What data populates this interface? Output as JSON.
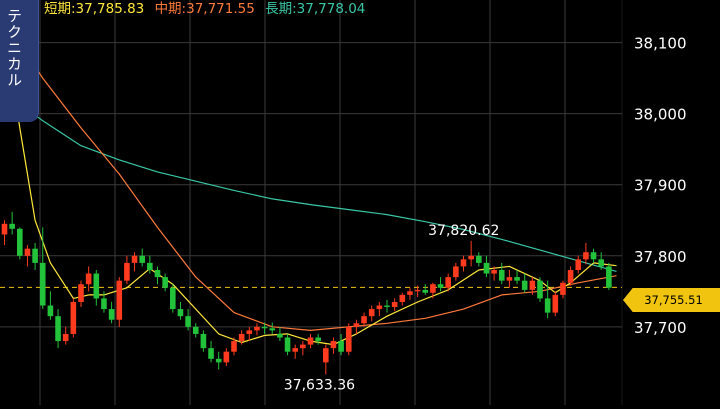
{
  "header": {
    "ma_short_label": "短期:37,785.83",
    "ma_mid_label": "中期:37,771.55",
    "ma_long_label": "長期:37,778.04"
  },
  "tab": {
    "label": "テクニカル"
  },
  "price_tag": {
    "value": "37,755.51"
  },
  "colors": {
    "up": "#ff3b1f",
    "down": "#22c33b",
    "ma_short": "#ffe93b",
    "ma_mid": "#ff7a3b",
    "ma_long": "#39c7a6",
    "current_line": "#f1c40f",
    "grid": "#3a3a3a"
  },
  "chart_data": {
    "type": "candlestick",
    "ylim": [
      37590,
      38160
    ],
    "yticks": [
      37700,
      37800,
      37900,
      38000,
      38100
    ],
    "ytick_labels": [
      "37,700",
      "37,800",
      "37,900",
      "38,000",
      "38,100"
    ],
    "current_price": 37755.51,
    "annotations": [
      {
        "text": "37,820.62",
        "index": 61
      },
      {
        "text": "37,633.36",
        "index": 42
      }
    ],
    "candles": [
      [
        37830,
        37850,
        37815,
        37845
      ],
      [
        37845,
        37862,
        37830,
        37838
      ],
      [
        37838,
        37840,
        37795,
        37800
      ],
      [
        37800,
        37815,
        37785,
        37810
      ],
      [
        37810,
        37818,
        37780,
        37790
      ],
      [
        37790,
        37840,
        37725,
        37730
      ],
      [
        37730,
        37750,
        37710,
        37715
      ],
      [
        37715,
        37725,
        37670,
        37680
      ],
      [
        37680,
        37700,
        37675,
        37690
      ],
      [
        37690,
        37740,
        37685,
        37735
      ],
      [
        37735,
        37765,
        37728,
        37760
      ],
      [
        37760,
        37785,
        37750,
        37775
      ],
      [
        37775,
        37780,
        37730,
        37740
      ],
      [
        37740,
        37750,
        37720,
        37725
      ],
      [
        37725,
        37735,
        37705,
        37710
      ],
      [
        37710,
        37770,
        37700,
        37765
      ],
      [
        37765,
        37800,
        37760,
        37790
      ],
      [
        37790,
        37805,
        37778,
        37800
      ],
      [
        37800,
        37810,
        37785,
        37790
      ],
      [
        37790,
        37800,
        37775,
        37780
      ],
      [
        37780,
        37785,
        37760,
        37770
      ],
      [
        37770,
        37775,
        37750,
        37755
      ],
      [
        37755,
        37760,
        37720,
        37725
      ],
      [
        37725,
        37735,
        37710,
        37715
      ],
      [
        37715,
        37725,
        37695,
        37700
      ],
      [
        37700,
        37705,
        37685,
        37690
      ],
      [
        37690,
        37695,
        37665,
        37670
      ],
      [
        37670,
        37680,
        37650,
        37655
      ],
      [
        37655,
        37665,
        37640,
        37650
      ],
      [
        37650,
        37670,
        37645,
        37665
      ],
      [
        37665,
        37685,
        37660,
        37680
      ],
      [
        37680,
        37695,
        37675,
        37690
      ],
      [
        37690,
        37700,
        37680,
        37695
      ],
      [
        37695,
        37705,
        37688,
        37700
      ],
      [
        37700,
        37706,
        37690,
        37698
      ],
      [
        37698,
        37706,
        37690,
        37695
      ],
      [
        37690,
        37700,
        37680,
        37685
      ],
      [
        37685,
        37690,
        37660,
        37665
      ],
      [
        37665,
        37675,
        37655,
        37670
      ],
      [
        37670,
        37680,
        37660,
        37675
      ],
      [
        37675,
        37690,
        37670,
        37685
      ],
      [
        37685,
        37690,
        37675,
        37680
      ],
      [
        37650,
        37675,
        37633,
        37670
      ],
      [
        37670,
        37685,
        37662,
        37680
      ],
      [
        37680,
        37690,
        37660,
        37665
      ],
      [
        37665,
        37705,
        37660,
        37700
      ],
      [
        37700,
        37710,
        37690,
        37705
      ],
      [
        37705,
        37720,
        37700,
        37715
      ],
      [
        37715,
        37730,
        37708,
        37725
      ],
      [
        37725,
        37735,
        37715,
        37730
      ],
      [
        37730,
        37738,
        37720,
        37728
      ],
      [
        37728,
        37740,
        37722,
        37735
      ],
      [
        37735,
        37748,
        37730,
        37745
      ],
      [
        37745,
        37755,
        37738,
        37750
      ],
      [
        37750,
        37758,
        37742,
        37752
      ],
      [
        37752,
        37760,
        37745,
        37748
      ],
      [
        37748,
        37762,
        37740,
        37760
      ],
      [
        37760,
        37770,
        37750,
        37755
      ],
      [
        37755,
        37775,
        37750,
        37770
      ],
      [
        37770,
        37790,
        37765,
        37785
      ],
      [
        37785,
        37800,
        37778,
        37795
      ],
      [
        37795,
        37821,
        37785,
        37800
      ],
      [
        37800,
        37805,
        37785,
        37790
      ],
      [
        37790,
        37800,
        37770,
        37775
      ],
      [
        37775,
        37785,
        37765,
        37780
      ],
      [
        37780,
        37790,
        37760,
        37765
      ],
      [
        37765,
        37780,
        37755,
        37770
      ],
      [
        37770,
        37780,
        37760,
        37765
      ],
      [
        37765,
        37775,
        37748,
        37752
      ],
      [
        37752,
        37770,
        37745,
        37765
      ],
      [
        37765,
        37770,
        37735,
        37740
      ],
      [
        37740,
        37765,
        37712,
        37720
      ],
      [
        37720,
        37750,
        37715,
        37745
      ],
      [
        37745,
        37765,
        37740,
        37762
      ],
      [
        37762,
        37785,
        37758,
        37780
      ],
      [
        37780,
        37800,
        37775,
        37795
      ],
      [
        37795,
        37818,
        37788,
        37805
      ],
      [
        37805,
        37810,
        37790,
        37795
      ],
      [
        37795,
        37805,
        37780,
        37785
      ],
      [
        37785,
        37790,
        37752,
        37755
      ]
    ],
    "ma_short": [
      [
        0,
        38120
      ],
      [
        2,
        37980
      ],
      [
        4,
        37850
      ],
      [
        6,
        37790
      ],
      [
        9,
        37740
      ],
      [
        11,
        37745
      ],
      [
        13,
        37745
      ],
      [
        16,
        37755
      ],
      [
        19,
        37782
      ],
      [
        22,
        37760
      ],
      [
        25,
        37725
      ],
      [
        28,
        37690
      ],
      [
        31,
        37678
      ],
      [
        34,
        37688
      ],
      [
        37,
        37690
      ],
      [
        40,
        37680
      ],
      [
        43,
        37675
      ],
      [
        46,
        37690
      ],
      [
        50,
        37715
      ],
      [
        54,
        37735
      ],
      [
        58,
        37752
      ],
      [
        62,
        37780
      ],
      [
        66,
        37785
      ],
      [
        70,
        37765
      ],
      [
        72,
        37748
      ],
      [
        74,
        37762
      ],
      [
        77,
        37790
      ],
      [
        80,
        37786
      ]
    ],
    "ma_mid": [
      [
        0,
        38130
      ],
      [
        5,
        38050
      ],
      [
        10,
        37980
      ],
      [
        15,
        37915
      ],
      [
        20,
        37840
      ],
      [
        25,
        37770
      ],
      [
        30,
        37720
      ],
      [
        35,
        37700
      ],
      [
        40,
        37695
      ],
      [
        45,
        37700
      ],
      [
        50,
        37705
      ],
      [
        55,
        37712
      ],
      [
        60,
        37725
      ],
      [
        65,
        37745
      ],
      [
        70,
        37750
      ],
      [
        75,
        37762
      ],
      [
        80,
        37772
      ]
    ],
    "ma_long": [
      [
        0,
        38030
      ],
      [
        5,
        37990
      ],
      [
        10,
        37955
      ],
      [
        15,
        37935
      ],
      [
        20,
        37918
      ],
      [
        25,
        37905
      ],
      [
        30,
        37892
      ],
      [
        35,
        37880
      ],
      [
        40,
        37872
      ],
      [
        45,
        37865
      ],
      [
        50,
        37858
      ],
      [
        55,
        37848
      ],
      [
        60,
        37837
      ],
      [
        65,
        37823
      ],
      [
        70,
        37808
      ],
      [
        75,
        37793
      ],
      [
        80,
        37778
      ]
    ]
  }
}
